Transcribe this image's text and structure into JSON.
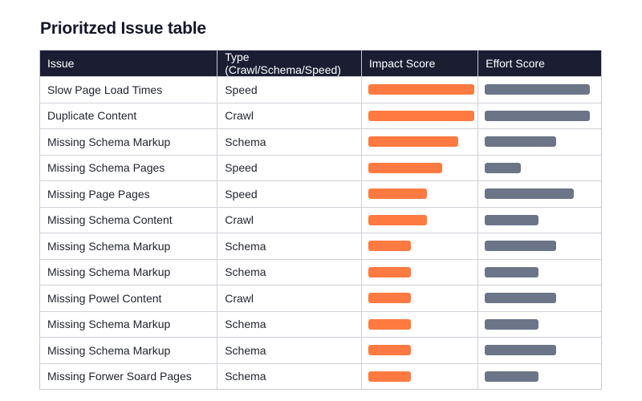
{
  "page": {
    "title": "Prioritzed Issue table"
  },
  "colors": {
    "header_bg": "#1b1e33",
    "impact_bar": "#ff7a40",
    "effort_bar": "#6b7587"
  },
  "table": {
    "columns": [
      "Issue",
      "Type (Crawl/Schema/Speed)",
      "Impact Score",
      "Effort Score"
    ],
    "rows": [
      {
        "issue": "Slow Page Load Times",
        "type": "Speed",
        "impact": 1.0,
        "effort": 1.0
      },
      {
        "issue": "Duplicate Content",
        "type": "Crawl",
        "impact": 1.0,
        "effort": 1.0
      },
      {
        "issue": "Missing Schema Markup",
        "type": "Schema",
        "impact": 0.85,
        "effort": 0.68
      },
      {
        "issue": "Missing Schema Pages",
        "type": "Speed",
        "impact": 0.7,
        "effort": 0.34
      },
      {
        "issue": "Missing Page Pages",
        "type": "Speed",
        "impact": 0.55,
        "effort": 0.85
      },
      {
        "issue": "Missing Schema Content",
        "type": "Crawl",
        "impact": 0.55,
        "effort": 0.51
      },
      {
        "issue": "Missing Schema Markup",
        "type": "Schema",
        "impact": 0.4,
        "effort": 0.68
      },
      {
        "issue": "Missing Schema Markup",
        "type": "Schema",
        "impact": 0.4,
        "effort": 0.51
      },
      {
        "issue": "Missing Powel Content",
        "type": "Crawl",
        "impact": 0.4,
        "effort": 0.68
      },
      {
        "issue": "Missing Schema Markup",
        "type": "Schema",
        "impact": 0.4,
        "effort": 0.51
      },
      {
        "issue": "Missing Schema Markup",
        "type": "Schema",
        "impact": 0.4,
        "effort": 0.68
      },
      {
        "issue": "Missing Forwer Soard Pages",
        "type": "Schema",
        "impact": 0.4,
        "effort": 0.51
      }
    ]
  }
}
